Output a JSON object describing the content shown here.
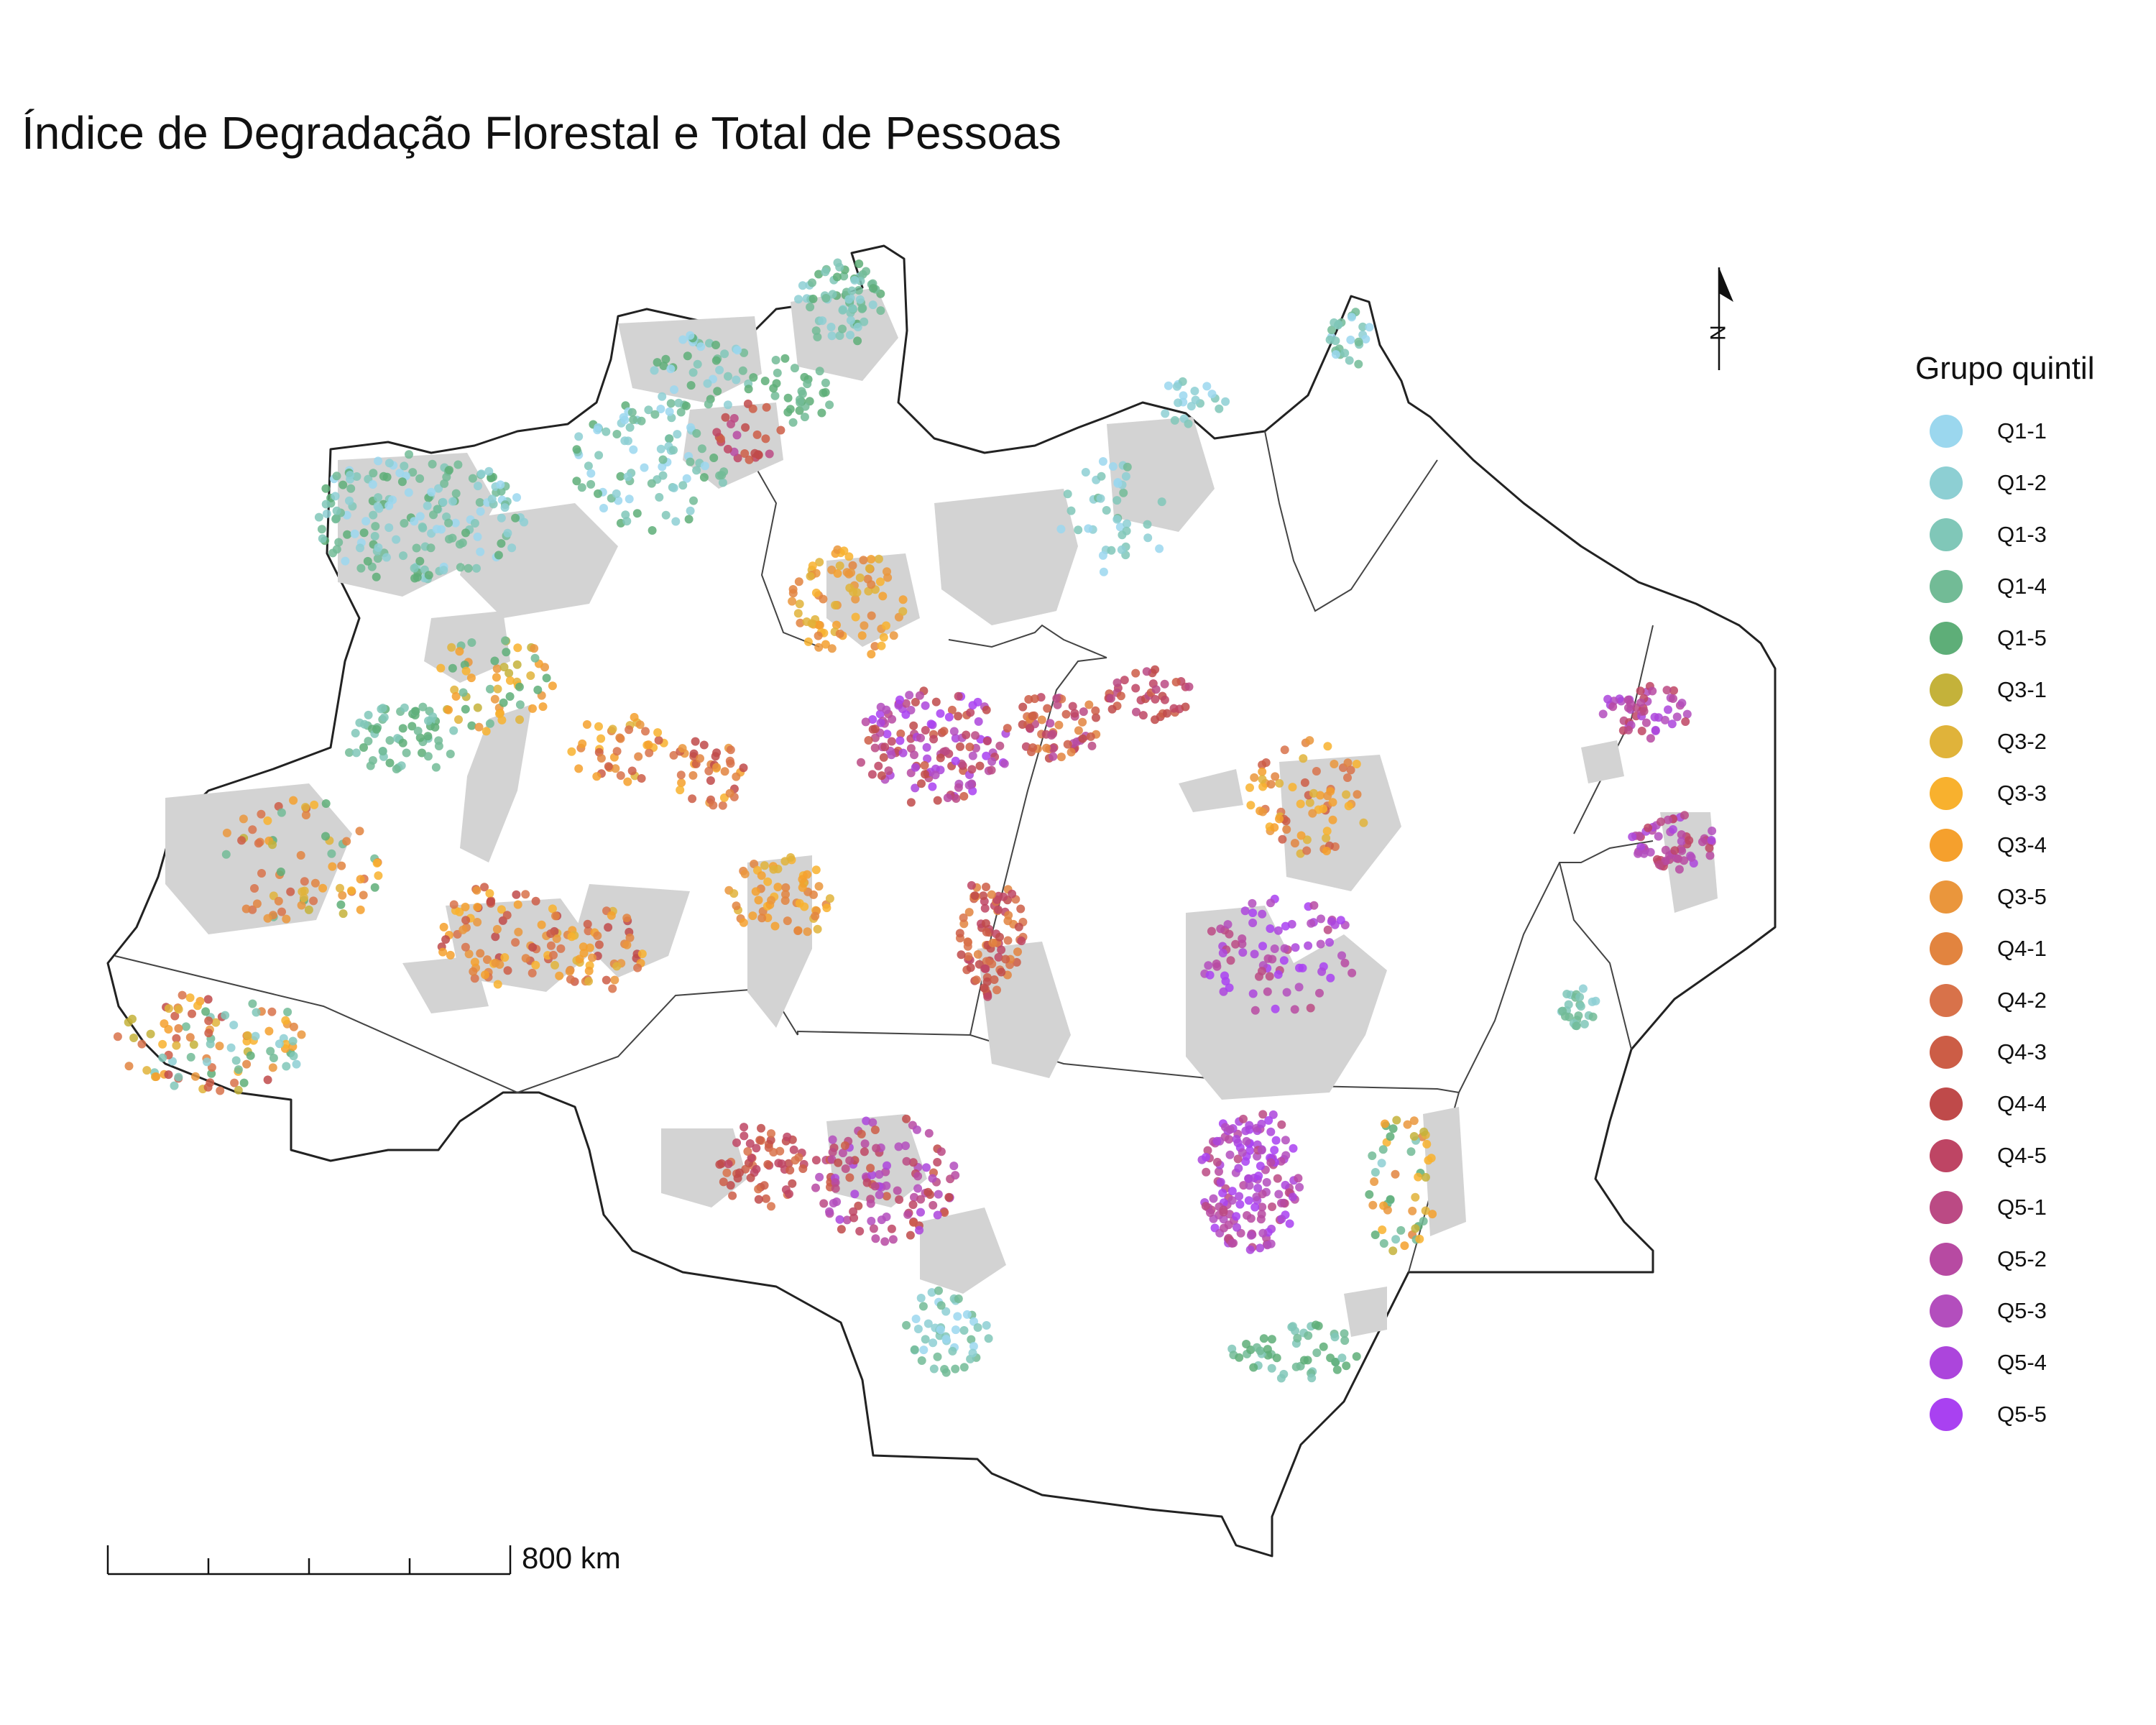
{
  "title": "Índice de Degradação Florestal e Total de Pessoas",
  "legend": {
    "title": "Grupo quintil",
    "items": [
      {
        "label": "Q1-1",
        "color": "#9bd7ee"
      },
      {
        "label": "Q1-2",
        "color": "#8dcfd3"
      },
      {
        "label": "Q1-3",
        "color": "#80c7b8"
      },
      {
        "label": "Q1-4",
        "color": "#72bb96"
      },
      {
        "label": "Q1-5",
        "color": "#5eae78"
      },
      {
        "label": "Q3-1",
        "color": "#c4b23a"
      },
      {
        "label": "Q3-2",
        "color": "#e0b33a"
      },
      {
        "label": "Q3-3",
        "color": "#f8b12e"
      },
      {
        "label": "Q3-4",
        "color": "#f5a02d"
      },
      {
        "label": "Q3-5",
        "color": "#ea963c"
      },
      {
        "label": "Q4-1",
        "color": "#e2843f"
      },
      {
        "label": "Q4-2",
        "color": "#d8724a"
      },
      {
        "label": "Q4-3",
        "color": "#cc5d46"
      },
      {
        "label": "Q4-4",
        "color": "#bf4a4a"
      },
      {
        "label": "Q4-5",
        "color": "#be4564"
      },
      {
        "label": "Q5-1",
        "color": "#bb4a84"
      },
      {
        "label": "Q5-2",
        "color": "#b74aa2"
      },
      {
        "label": "Q5-3",
        "color": "#b34ebd"
      },
      {
        "label": "Q5-4",
        "color": "#ac45dc"
      },
      {
        "label": "Q5-5",
        "color": "#a941f1"
      }
    ]
  },
  "scale_bar": {
    "label": "800 km"
  },
  "north_arrow": {
    "label": "N"
  },
  "colors": {
    "land": "#ffffff",
    "boundary": "#222222",
    "protected_area": "#d3d3d3"
  }
}
